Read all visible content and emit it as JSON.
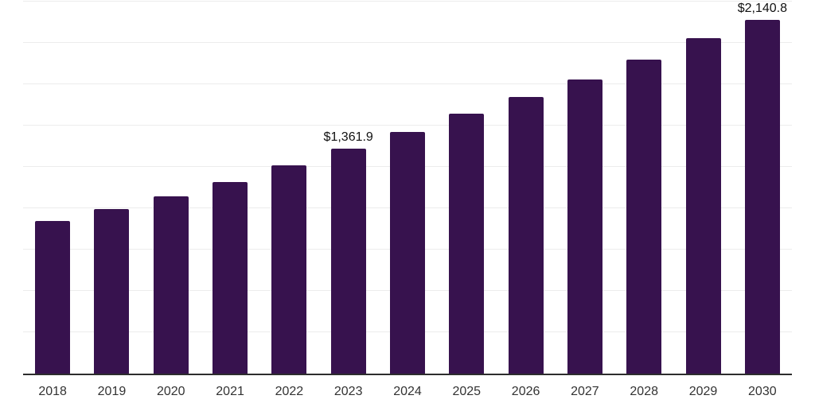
{
  "chart_data": {
    "type": "bar",
    "title": "",
    "xlabel": "",
    "ylabel": "",
    "categories": [
      "2018",
      "2019",
      "2020",
      "2021",
      "2022",
      "2023",
      "2024",
      "2025",
      "2026",
      "2027",
      "2028",
      "2029",
      "2030"
    ],
    "values": [
      925,
      993,
      1070,
      1161,
      1262,
      1361.9,
      1464,
      1570,
      1671,
      1781,
      1901,
      2031,
      2140.8
    ],
    "data_labels": [
      {
        "category": "2023",
        "text": "$1,361.9"
      },
      {
        "category": "2030",
        "text": "$2,140.8"
      }
    ],
    "ylim": [
      0,
      2250
    ],
    "gridline_step": 250,
    "grid": true,
    "legend": false,
    "y_tick_labels_visible": false,
    "colors": {
      "bar": "#37124e",
      "gridline": "#ececec",
      "axis_line": "#2d2d2d",
      "tick_label": "#333333",
      "data_label": "#111111",
      "background": "#ffffff"
    }
  }
}
